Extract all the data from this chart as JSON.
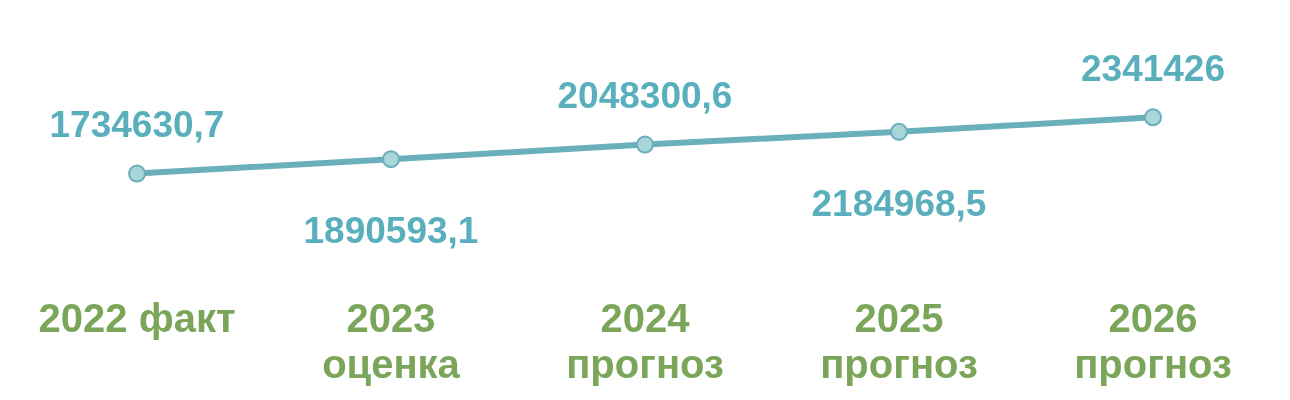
{
  "chart_data": {
    "type": "line",
    "categories": [
      "2022 факт",
      "2023\nоценка",
      "2024\nпрогноз",
      "2025\nпрогноз",
      "2026\nпрогноз"
    ],
    "series": [
      {
        "color": "#6ab0bb",
        "values": [
          1734630.7,
          1890593.1,
          2048300.6,
          2184968.5,
          2341426
        ],
        "value_labels": [
          "1734630,7",
          "1890593,1",
          "2048300,6",
          "2184968,5",
          "2341426"
        ]
      }
    ],
    "marker": "circle",
    "grid": false,
    "legend": false,
    "tick_labels": "x"
  }
}
